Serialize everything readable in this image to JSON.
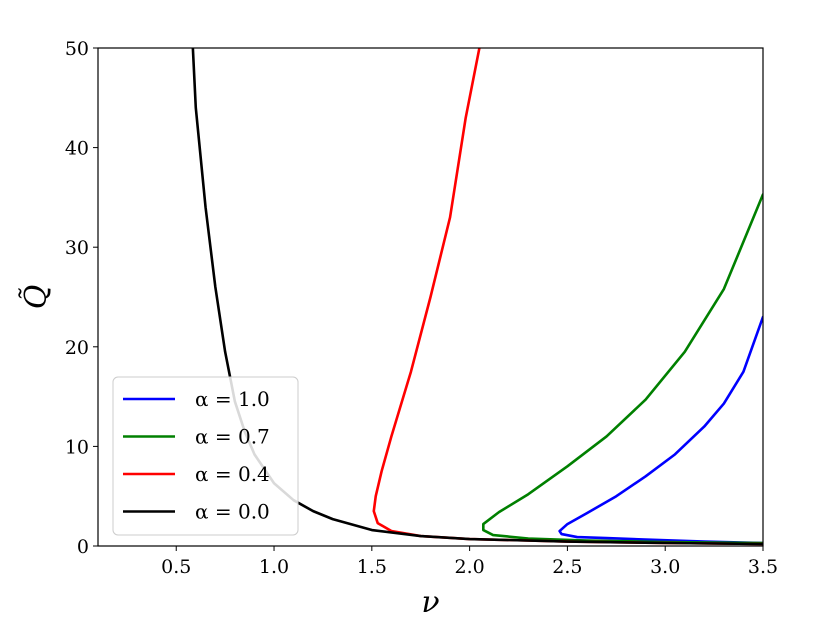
{
  "chart_data": {
    "type": "line",
    "title": "",
    "xlabel": "ν",
    "ylabel": "Q̃",
    "xlim": [
      0.1,
      3.5
    ],
    "ylim": [
      0,
      50
    ],
    "x_ticks": [
      0.5,
      1.0,
      1.5,
      2.0,
      2.5,
      3.0,
      3.5
    ],
    "x_tick_labels": [
      "0.5",
      "1.0",
      "1.5",
      "2.0",
      "2.5",
      "3.0",
      "3.5"
    ],
    "y_ticks": [
      0,
      10,
      20,
      30,
      40,
      50
    ],
    "y_tick_labels": [
      "0",
      "10",
      "20",
      "30",
      "40",
      "50"
    ],
    "grid": false,
    "legend_position": "lower-left",
    "series": [
      {
        "name": "α = 1.0",
        "color": "#0000ff",
        "points": [
          [
            3.5,
            0.3
          ],
          [
            3.2,
            0.45
          ],
          [
            2.9,
            0.65
          ],
          [
            2.7,
            0.8
          ],
          [
            2.55,
            0.9
          ],
          [
            2.47,
            1.2
          ],
          [
            2.46,
            1.5
          ],
          [
            2.5,
            2.2
          ],
          [
            2.6,
            3.3
          ],
          [
            2.75,
            5.0
          ],
          [
            2.9,
            7.0
          ],
          [
            3.05,
            9.2
          ],
          [
            3.2,
            12.0
          ],
          [
            3.3,
            14.3
          ],
          [
            3.4,
            17.5
          ],
          [
            3.5,
            23.0
          ]
        ]
      },
      {
        "name": "α = 0.7",
        "color": "#008000",
        "points": [
          [
            3.5,
            0.3
          ],
          [
            3.0,
            0.4
          ],
          [
            2.6,
            0.55
          ],
          [
            2.3,
            0.75
          ],
          [
            2.12,
            1.1
          ],
          [
            2.07,
            1.6
          ],
          [
            2.07,
            2.2
          ],
          [
            2.15,
            3.4
          ],
          [
            2.3,
            5.2
          ],
          [
            2.5,
            8.0
          ],
          [
            2.7,
            11.0
          ],
          [
            2.9,
            14.7
          ],
          [
            3.1,
            19.5
          ],
          [
            3.3,
            25.8
          ],
          [
            3.5,
            35.3
          ]
        ]
      },
      {
        "name": "α = 0.4",
        "color": "#ff0000",
        "points": [
          [
            3.5,
            0.2
          ],
          [
            3.0,
            0.3
          ],
          [
            2.5,
            0.45
          ],
          [
            2.0,
            0.7
          ],
          [
            1.75,
            1.0
          ],
          [
            1.6,
            1.5
          ],
          [
            1.53,
            2.3
          ],
          [
            1.51,
            3.5
          ],
          [
            1.52,
            5.0
          ],
          [
            1.55,
            7.5
          ],
          [
            1.6,
            11.0
          ],
          [
            1.7,
            17.5
          ],
          [
            1.8,
            25.0
          ],
          [
            1.9,
            33.0
          ],
          [
            1.98,
            43.0
          ],
          [
            2.05,
            50.0
          ]
        ]
      },
      {
        "name": "α = 0.0",
        "color": "#000000",
        "points": [
          [
            0.585,
            50.0
          ],
          [
            0.6,
            44.0
          ],
          [
            0.65,
            34.0
          ],
          [
            0.7,
            26.0
          ],
          [
            0.75,
            19.5
          ],
          [
            0.8,
            14.5
          ],
          [
            0.85,
            11.5
          ],
          [
            0.9,
            9.2
          ],
          [
            1.0,
            6.3
          ],
          [
            1.1,
            4.6
          ],
          [
            1.2,
            3.5
          ],
          [
            1.3,
            2.7
          ],
          [
            1.5,
            1.6
          ],
          [
            1.75,
            1.0
          ],
          [
            2.0,
            0.7
          ],
          [
            2.5,
            0.45
          ],
          [
            3.0,
            0.3
          ],
          [
            3.5,
            0.2
          ]
        ]
      }
    ]
  }
}
